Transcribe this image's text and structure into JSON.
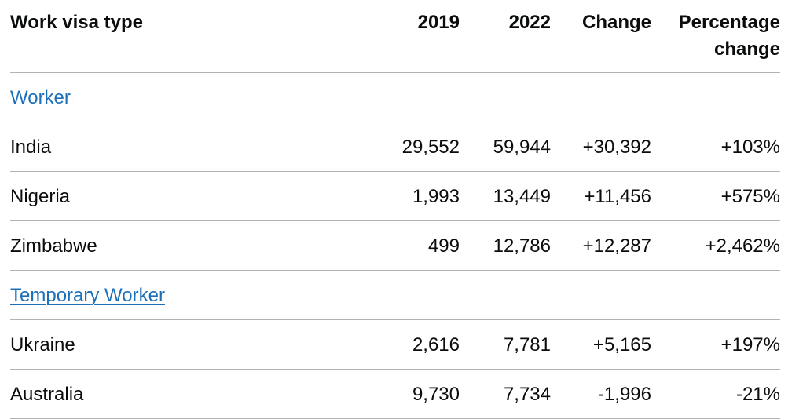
{
  "table": {
    "headers": {
      "type": "Work visa type",
      "y2019": "2019",
      "y2022": "2022",
      "change": "Change",
      "pct": "Percentage change"
    },
    "groups": [
      {
        "name": "Worker",
        "rows": [
          {
            "country": "India",
            "y2019": "29,552",
            "y2022": "59,944",
            "change": "+30,392",
            "pct": "+103%"
          },
          {
            "country": "Nigeria",
            "y2019": "1,993",
            "y2022": "13,449",
            "change": "+11,456",
            "pct": "+575%"
          },
          {
            "country": "Zimbabwe",
            "y2019": "499",
            "y2022": "12,786",
            "change": "+12,287",
            "pct": "+2,462%"
          }
        ]
      },
      {
        "name": "Temporary Worker",
        "rows": [
          {
            "country": "Ukraine",
            "y2019": "2,616",
            "y2022": "7,781",
            "change": "+5,165",
            "pct": "+197%"
          },
          {
            "country": "Australia",
            "y2019": "9,730",
            "y2022": "7,734",
            "change": "-1,996",
            "pct": "-21%"
          }
        ]
      }
    ]
  },
  "colors": {
    "text": "#0b0c0c",
    "link": "#1d70b8",
    "border": "#b1b4b6"
  }
}
